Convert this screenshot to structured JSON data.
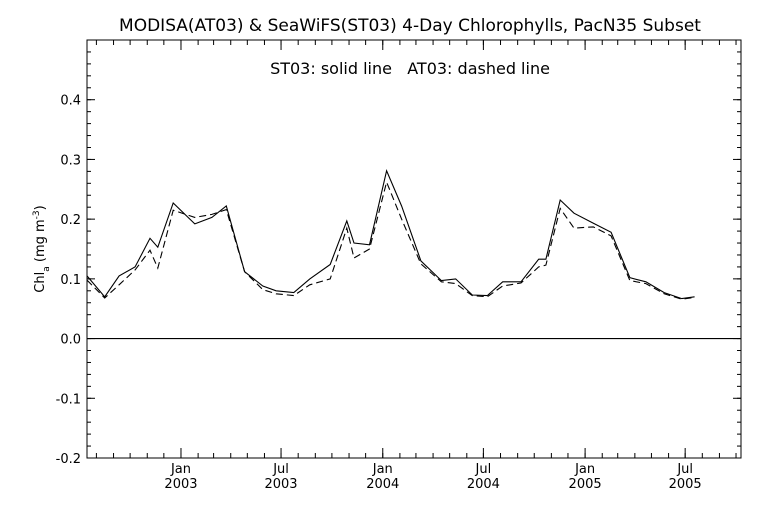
{
  "chart_data": {
    "type": "line",
    "title": "MODISA(AT03) & SeaWiFS(ST03) 4-Day Chlorophylls, PacN35 Subset",
    "annotation": "ST03: solid line   AT03: dashed line",
    "ylabel": {
      "main": "Chl",
      "sub": "a",
      "units_prefix": " (mg m",
      "units_sup": "-3",
      "units_suffix": ")"
    },
    "xlabel": "",
    "ylim": [
      -0.2,
      0.5
    ],
    "yticks": [
      "-0.2",
      "-0.1",
      "0.0",
      "0.1",
      "0.2",
      "0.3",
      "0.4"
    ],
    "xlim": [
      "2002-07-15",
      "2005-10-10"
    ],
    "xticks": [
      {
        "date": "2003-01-01",
        "month": "Jan",
        "year": "2003"
      },
      {
        "date": "2003-07-01",
        "month": "Jul",
        "year": "2003"
      },
      {
        "date": "2004-01-01",
        "month": "Jan",
        "year": "2004"
      },
      {
        "date": "2004-07-01",
        "month": "Jul",
        "year": "2004"
      },
      {
        "date": "2005-01-01",
        "month": "Jan",
        "year": "2005"
      },
      {
        "date": "2005-07-01",
        "month": "Jul",
        "year": "2005"
      }
    ],
    "zero_line": 0.0,
    "grid": false,
    "series": [
      {
        "name": "ST03",
        "style": "solid",
        "points": [
          [
            "2002-07-15",
            0.105
          ],
          [
            "2002-08-16",
            0.07
          ],
          [
            "2002-09-11",
            0.105
          ],
          [
            "2002-10-10",
            0.12
          ],
          [
            "2002-11-06",
            0.168
          ],
          [
            "2002-11-20",
            0.153
          ],
          [
            "2002-12-18",
            0.227
          ],
          [
            "2003-01-26",
            0.192
          ],
          [
            "2003-02-26",
            0.203
          ],
          [
            "2003-03-24",
            0.222
          ],
          [
            "2003-04-26",
            0.112
          ],
          [
            "2003-05-29",
            0.088
          ],
          [
            "2003-06-22",
            0.08
          ],
          [
            "2003-07-24",
            0.077
          ],
          [
            "2003-08-22",
            0.1
          ],
          [
            "2003-09-28",
            0.124
          ],
          [
            "2003-10-28",
            0.197
          ],
          [
            "2003-11-10",
            0.16
          ],
          [
            "2003-12-08",
            0.157
          ],
          [
            "2004-01-08",
            0.281
          ],
          [
            "2004-02-04",
            0.222
          ],
          [
            "2004-03-10",
            0.13
          ],
          [
            "2004-04-16",
            0.097
          ],
          [
            "2004-05-12",
            0.1
          ],
          [
            "2004-06-11",
            0.073
          ],
          [
            "2004-07-08",
            0.072
          ],
          [
            "2004-08-05",
            0.095
          ],
          [
            "2004-09-07",
            0.095
          ],
          [
            "2004-10-09",
            0.133
          ],
          [
            "2004-10-22",
            0.133
          ],
          [
            "2004-11-17",
            0.232
          ],
          [
            "2004-12-12",
            0.21
          ],
          [
            "2005-01-16",
            0.193
          ],
          [
            "2005-02-17",
            0.178
          ],
          [
            "2005-03-23",
            0.102
          ],
          [
            "2005-04-21",
            0.095
          ],
          [
            "2005-05-24",
            0.077
          ],
          [
            "2005-06-25",
            0.067
          ],
          [
            "2005-07-18",
            0.07
          ]
        ]
      },
      {
        "name": "AT03",
        "style": "dashed",
        "points": [
          [
            "2002-07-15",
            0.098
          ],
          [
            "2002-08-16",
            0.068
          ],
          [
            "2002-09-11",
            0.09
          ],
          [
            "2002-10-10",
            0.115
          ],
          [
            "2002-11-06",
            0.148
          ],
          [
            "2002-11-20",
            0.118
          ],
          [
            "2002-12-18",
            0.215
          ],
          [
            "2003-01-26",
            0.203
          ],
          [
            "2003-02-26",
            0.208
          ],
          [
            "2003-03-24",
            0.216
          ],
          [
            "2003-04-26",
            0.112
          ],
          [
            "2003-05-29",
            0.082
          ],
          [
            "2003-06-22",
            0.075
          ],
          [
            "2003-07-24",
            0.072
          ],
          [
            "2003-08-22",
            0.09
          ],
          [
            "2003-09-28",
            0.1
          ],
          [
            "2003-10-28",
            0.185
          ],
          [
            "2003-11-10",
            0.135
          ],
          [
            "2003-12-08",
            0.15
          ],
          [
            "2004-01-08",
            0.262
          ],
          [
            "2004-02-04",
            0.2
          ],
          [
            "2004-03-10",
            0.125
          ],
          [
            "2004-04-16",
            0.095
          ],
          [
            "2004-05-12",
            0.092
          ],
          [
            "2004-06-11",
            0.072
          ],
          [
            "2004-07-08",
            0.07
          ],
          [
            "2004-08-05",
            0.088
          ],
          [
            "2004-09-07",
            0.093
          ],
          [
            "2004-10-09",
            0.12
          ],
          [
            "2004-10-22",
            0.123
          ],
          [
            "2004-11-17",
            0.218
          ],
          [
            "2004-12-12",
            0.185
          ],
          [
            "2005-01-16",
            0.187
          ],
          [
            "2005-02-17",
            0.172
          ],
          [
            "2005-03-23",
            0.097
          ],
          [
            "2005-04-21",
            0.092
          ],
          [
            "2005-05-24",
            0.075
          ],
          [
            "2005-06-25",
            0.066
          ],
          [
            "2005-07-18",
            0.069
          ]
        ]
      }
    ]
  }
}
